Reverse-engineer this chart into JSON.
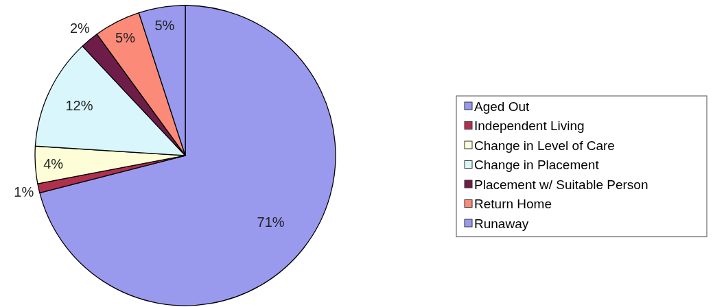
{
  "chart_data": {
    "type": "pie",
    "categories": [
      "Aged Out",
      "Independent Living",
      "Change in Level of Care",
      "Change in Placement",
      "Placement w/ Suitable Person",
      "Return Home",
      "Runaway"
    ],
    "values": [
      71,
      1,
      4,
      12,
      2,
      5,
      5
    ],
    "colors": [
      "#9999ee",
      "#b0304e",
      "#fdfdd8",
      "#d8f6fb",
      "#6e1d48",
      "#fb8a78",
      "#9999ee"
    ],
    "value_labels": [
      "71%",
      "1%",
      "4%",
      "12%",
      "2%",
      "5%",
      "5%"
    ],
    "legend": "right"
  }
}
